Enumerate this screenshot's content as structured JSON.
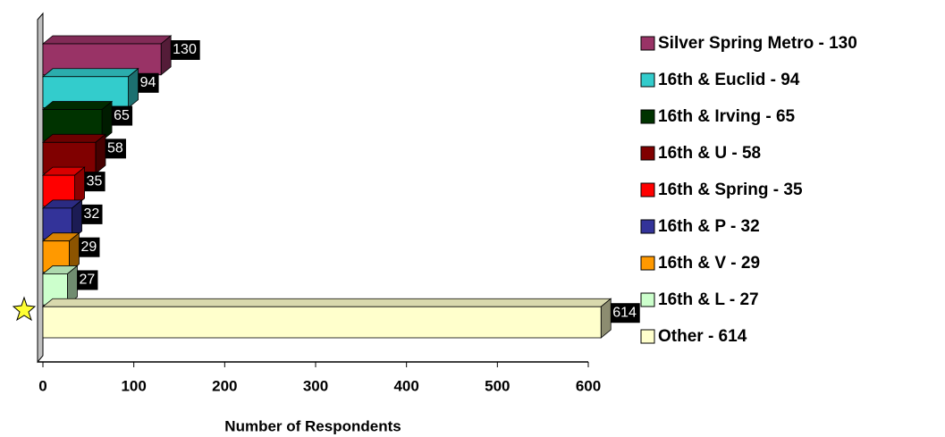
{
  "chart_data": {
    "type": "bar",
    "orientation": "horizontal",
    "categories": [
      "Silver Spring Metro - 130",
      "16th & Euclid - 94",
      "16th & Irving - 65",
      "16th & U - 58",
      "16th & Spring - 35",
      "16th & P - 32",
      "16th & V - 29",
      "16th & L - 27",
      "Other - 614"
    ],
    "values": [
      130,
      94,
      65,
      58,
      35,
      32,
      29,
      27,
      614
    ],
    "colors": [
      "#993366",
      "#33cccc",
      "#003300",
      "#800000",
      "#ff0000",
      "#333399",
      "#ff9900",
      "#ccffcc",
      "#ffffcc"
    ],
    "xlim": [
      0,
      600
    ],
    "xticks": [
      0,
      100,
      200,
      300,
      400,
      500,
      600
    ],
    "xlabel": "Number of Respondents",
    "legend": "right"
  }
}
